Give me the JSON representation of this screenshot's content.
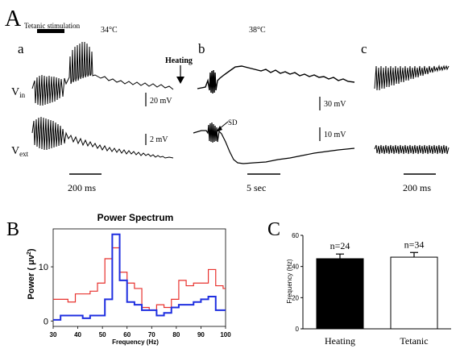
{
  "panel_a": {
    "label": "A",
    "tetanic_label": "Tetanic stimulation",
    "sub_a": {
      "label": "a",
      "temp": "34°C"
    },
    "heating_label": "Heating",
    "sub_b": {
      "label": "b",
      "temp": "38°C",
      "sd_label": "SD"
    },
    "sub_c": {
      "label": "c"
    },
    "vin_label": "V",
    "vin_sub": "in",
    "vext_label": "V",
    "vext_sub": "ext",
    "scale_a_top": "20 mV",
    "scale_a_bottom": "2 mV",
    "scale_b_top": "30 mV",
    "scale_b_bottom": "10 mV",
    "time_a": "200 ms",
    "time_b": "5 sec",
    "time_c": "200 ms"
  },
  "panel_b": {
    "label": "B",
    "title": "Power Spectrum",
    "ylabel_main": "Power ( μv",
    "ylabel_sup": "2",
    "ylabel_end": ")",
    "xlabel": "Frequency (Hz)"
  },
  "panel_c": {
    "label": "C",
    "ylabel": "Frequency (Hz)"
  },
  "chart_data": [
    {
      "type": "line",
      "title": "Power Spectrum",
      "xlabel": "Frequency (Hz)",
      "ylabel": "Power (μv²)",
      "xlim": [
        30,
        100
      ],
      "ylim": [
        -1,
        17
      ],
      "xticks": [
        "30",
        "40",
        "50",
        "60",
        "70",
        "80",
        "90",
        "100"
      ],
      "yticks": [
        "0",
        "10"
      ],
      "series": [
        {
          "color": "#e8322e",
          "x": [
            30,
            33,
            36,
            39,
            42,
            45,
            48,
            51,
            54,
            57,
            60,
            63,
            66,
            69,
            72,
            75,
            78,
            81,
            84,
            87,
            90,
            93,
            96,
            99,
            100
          ],
          "y": [
            4,
            4,
            3.5,
            5,
            5,
            5.5,
            7,
            11.5,
            13.5,
            9,
            7,
            6,
            2.5,
            2,
            3,
            2.5,
            4,
            7.5,
            6.5,
            7,
            7,
            9.5,
            6.5,
            6,
            6
          ]
        },
        {
          "color": "#1f2fe0",
          "x": [
            30,
            33,
            36,
            39,
            42,
            45,
            48,
            51,
            54,
            57,
            60,
            63,
            66,
            69,
            72,
            75,
            78,
            81,
            84,
            87,
            90,
            93,
            96,
            99,
            100
          ],
          "y": [
            0.2,
            1,
            1,
            1,
            0.5,
            1,
            1,
            4,
            16,
            7.5,
            3.5,
            3,
            2,
            2,
            1,
            1.5,
            2.5,
            3,
            3,
            3.5,
            4,
            4.5,
            2,
            2,
            2
          ]
        }
      ]
    },
    {
      "type": "bar",
      "ylabel": "Frequency (Hz)",
      "ylim": [
        0,
        60
      ],
      "yticks": [
        "0",
        "20",
        "40",
        "60"
      ],
      "categories": [
        "Heating",
        "Tetanic"
      ],
      "values": [
        45,
        46
      ],
      "errors": [
        3,
        3
      ],
      "annotations": [
        "n=24",
        "n=34"
      ],
      "fills": [
        "#000000",
        "#ffffff"
      ]
    }
  ]
}
